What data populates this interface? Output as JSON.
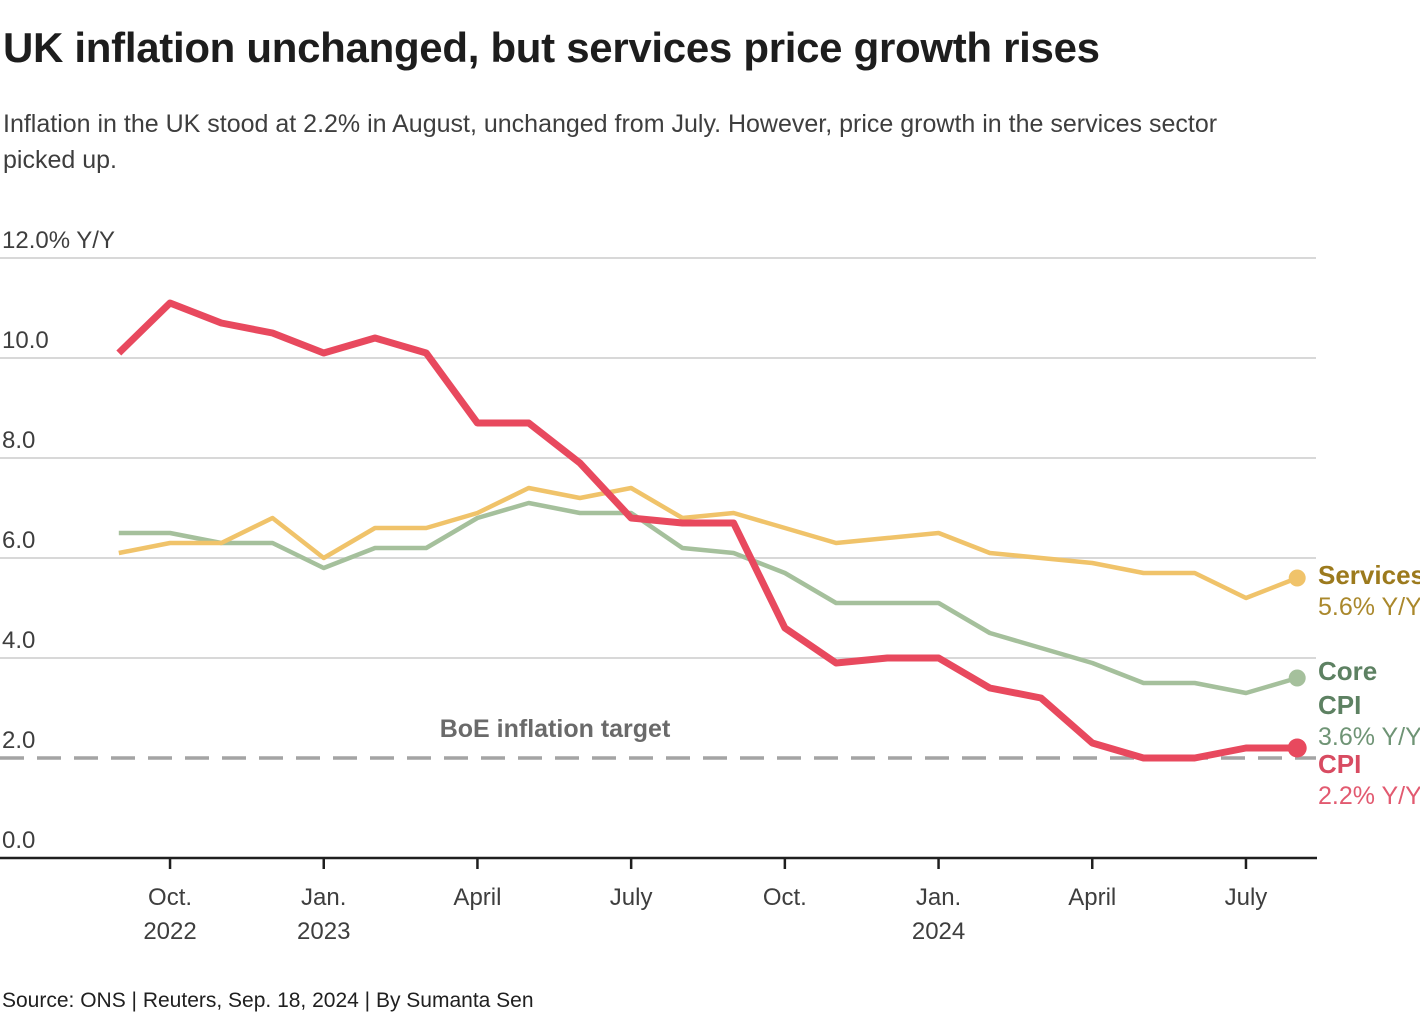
{
  "header": {
    "title": "UK inflation unchanged, but services price growth rises",
    "subtitle_line1": "Inflation in the UK stood at 2.2% in August, unchanged from July. However, price growth in the services sector",
    "subtitle_line2": "picked up."
  },
  "footer": {
    "source": "Source: ONS | Reuters, Sep. 18, 2024 | By Sumanta Sen"
  },
  "colors": {
    "background": "#ffffff",
    "title_text": "#1d1d1d",
    "body_text": "#3e3e3e",
    "gridline": "#cbcbcb",
    "axis_line": "#1f1f1f",
    "target_dash": "#a4a4a4",
    "target_label": "#6a6a6a",
    "services_line": "#f0c36a",
    "services_label": "#9c7a1d",
    "services_value": "#aa882c",
    "core_cpi_line": "#a5c09c",
    "core_cpi_label": "#5d8162",
    "core_cpi_value": "#6f9475",
    "cpi_line": "#e8495e",
    "cpi_label": "#d84b61",
    "cpi_value": "#e25a70"
  },
  "chart_data": {
    "type": "line",
    "x": [
      "Sep. 2022",
      "Oct. 2022",
      "Nov. 2022",
      "Dec. 2022",
      "Jan. 2023",
      "Feb. 2023",
      "Mar. 2023",
      "Apr. 2023",
      "May 2023",
      "Jun. 2023",
      "Jul. 2023",
      "Aug. 2023",
      "Sep. 2023",
      "Oct. 2023",
      "Nov. 2023",
      "Dec. 2023",
      "Jan. 2024",
      "Feb. 2024",
      "Mar. 2024",
      "Apr. 2024",
      "May 2024",
      "Jun. 2024",
      "Jul. 2024",
      "Aug. 2024"
    ],
    "series": [
      {
        "name": "Services",
        "end_label": "5.6% Y/Y",
        "color": "#f0c36a",
        "label_color": "#9c7a1d",
        "value_color": "#aa882c",
        "values": [
          6.1,
          6.3,
          6.3,
          6.8,
          6.0,
          6.6,
          6.6,
          6.9,
          7.4,
          7.2,
          7.4,
          6.8,
          6.9,
          6.6,
          6.3,
          6.4,
          6.5,
          6.1,
          6.0,
          5.9,
          5.7,
          5.7,
          5.2,
          5.6
        ]
      },
      {
        "name": "Core CPI",
        "end_label": "3.6% Y/Y",
        "color": "#a5c09c",
        "label_color": "#5d8162",
        "value_color": "#6f9475",
        "values": [
          6.5,
          6.5,
          6.3,
          6.3,
          5.8,
          6.2,
          6.2,
          6.8,
          7.1,
          6.9,
          6.9,
          6.2,
          6.1,
          5.7,
          5.1,
          5.1,
          5.1,
          4.5,
          4.2,
          3.9,
          3.5,
          3.5,
          3.3,
          3.6
        ]
      },
      {
        "name": "CPI",
        "end_label": "2.2% Y/Y",
        "color": "#e8495e",
        "label_color": "#d84b61",
        "value_color": "#e25a70",
        "values": [
          10.1,
          11.1,
          10.7,
          10.5,
          10.1,
          10.4,
          10.1,
          8.7,
          8.7,
          7.9,
          6.8,
          6.7,
          6.7,
          4.6,
          3.9,
          4.0,
          4.0,
          3.4,
          3.2,
          2.3,
          2.0,
          2.0,
          2.2,
          2.2
        ]
      }
    ],
    "ylim": [
      0,
      12
    ],
    "y_ticks": [
      {
        "value": 12,
        "label": "12.0% Y/Y"
      },
      {
        "value": 10,
        "label": "10.0"
      },
      {
        "value": 8,
        "label": "8.0"
      },
      {
        "value": 6,
        "label": "6.0"
      },
      {
        "value": 4,
        "label": "4.0"
      },
      {
        "value": 2,
        "label": "2.0"
      },
      {
        "value": 0,
        "label": "0.0"
      }
    ],
    "x_ticks": [
      {
        "index": 1,
        "label": "Oct.",
        "year": "2022"
      },
      {
        "index": 4,
        "label": "Jan.",
        "year": "2023"
      },
      {
        "index": 7,
        "label": "April",
        "year": ""
      },
      {
        "index": 10,
        "label": "July",
        "year": ""
      },
      {
        "index": 13,
        "label": "Oct.",
        "year": ""
      },
      {
        "index": 16,
        "label": "Jan.",
        "year": "2024"
      },
      {
        "index": 19,
        "label": "April",
        "year": ""
      },
      {
        "index": 22,
        "label": "July",
        "year": ""
      }
    ],
    "target_line": {
      "value": 2.0,
      "label": "BoE inflation target"
    },
    "grid": true,
    "legend_position": "right"
  }
}
